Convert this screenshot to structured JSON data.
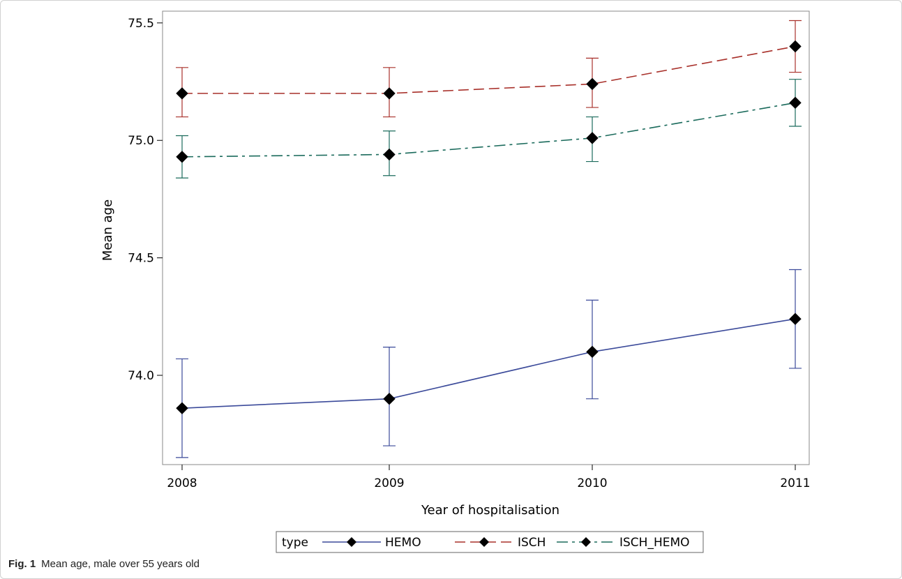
{
  "caption": {
    "fig_label": "Fig. 1",
    "text": "Mean age, male over 55 years old"
  },
  "chart_data": {
    "type": "line",
    "xlabel": "Year of hospitalisation",
    "ylabel": "Mean age",
    "x": [
      "2008",
      "2009",
      "2010",
      "2011"
    ],
    "ylim": [
      73.62,
      75.55
    ],
    "yticks": [
      "74.0",
      "74.5",
      "75.0",
      "75.5"
    ],
    "grid": false,
    "legend": {
      "title": "type",
      "placement": "bottom"
    },
    "series": [
      {
        "name": "HEMO",
        "color": "#3b4a9a",
        "dash": "solid",
        "values": [
          73.86,
          73.9,
          74.1,
          74.24
        ],
        "lower": [
          73.65,
          73.7,
          73.9,
          74.03
        ],
        "upper": [
          74.07,
          74.12,
          74.32,
          74.45
        ]
      },
      {
        "name": "ISCH",
        "color": "#a8302a",
        "dash": "dashed",
        "values": [
          75.2,
          75.2,
          75.24,
          75.4
        ],
        "lower": [
          75.1,
          75.1,
          75.14,
          75.29
        ],
        "upper": [
          75.31,
          75.31,
          75.35,
          75.51
        ]
      },
      {
        "name": "ISCH_HEMO",
        "color": "#1b6b5c",
        "dash": "dashdot",
        "values": [
          74.93,
          74.94,
          75.01,
          75.16
        ],
        "lower": [
          74.84,
          74.85,
          74.91,
          75.06
        ],
        "upper": [
          75.02,
          75.04,
          75.1,
          75.26
        ]
      }
    ]
  }
}
